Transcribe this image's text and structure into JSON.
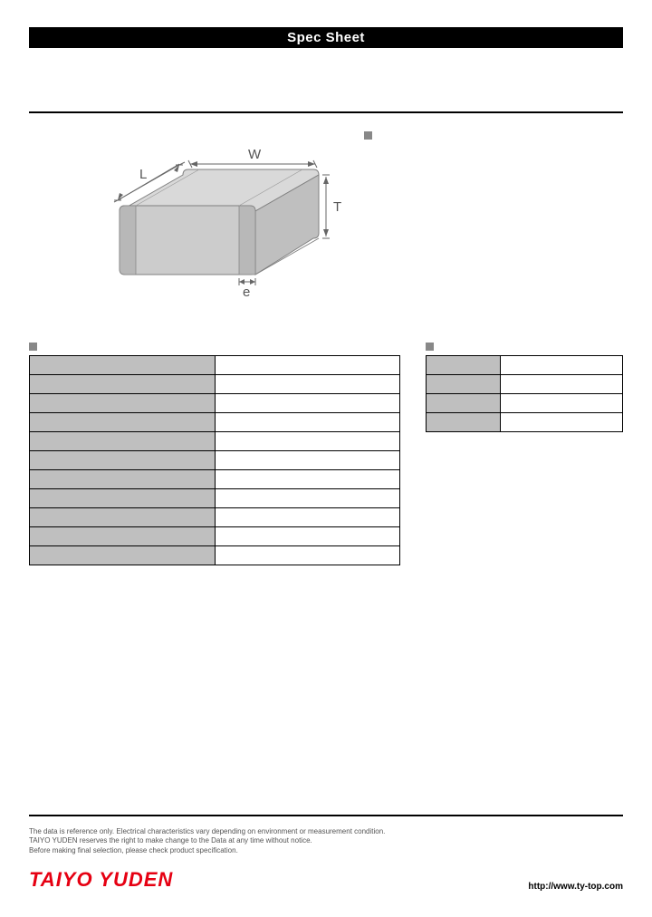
{
  "header": {
    "title": "Spec Sheet"
  },
  "diagram": {
    "labels": {
      "L": "L",
      "W": "W",
      "T": "T",
      "e": "e"
    },
    "colors": {
      "face_top": "#d9d9d9",
      "face_front": "#cccccc",
      "face_side": "#bfbfbf",
      "edge": "#808080",
      "terminal": "#b0b0b0",
      "dim_line": "#666666"
    }
  },
  "features": {
    "heading": "",
    "items": [
      "-",
      "-",
      "-"
    ]
  },
  "spec_table": {
    "heading": "",
    "rows": [
      {
        "label": "",
        "value": ""
      },
      {
        "label": "",
        "value": ""
      },
      {
        "label": "",
        "value": ""
      },
      {
        "label": "",
        "value": ""
      },
      {
        "label": "",
        "value": ""
      },
      {
        "label": "",
        "value": ""
      },
      {
        "label": "",
        "value": ""
      },
      {
        "label": "",
        "value": ""
      },
      {
        "label": "",
        "value": ""
      },
      {
        "label": "",
        "value": ""
      },
      {
        "label": "",
        "value": ""
      }
    ]
  },
  "dim_table": {
    "heading": "",
    "rows": [
      {
        "label": "",
        "value": ""
      },
      {
        "label": "",
        "value": ""
      },
      {
        "label": "",
        "value": ""
      },
      {
        "label": "",
        "value": ""
      }
    ]
  },
  "footer": {
    "disclaimer": [
      "The data is reference only. Electrical characteristics vary depending on environment or measurement condition.",
      "TAIYO YUDEN reserves the right to make change to the Data at any time without notice.",
      "Before making final selection, please check product specification."
    ],
    "brand": "TAIYO YUDEN",
    "url": "http://www.ty-top.com"
  },
  "colors": {
    "brand": "#e60012",
    "bullet": "#888888",
    "table_header_bg": "#bfbfbf"
  }
}
